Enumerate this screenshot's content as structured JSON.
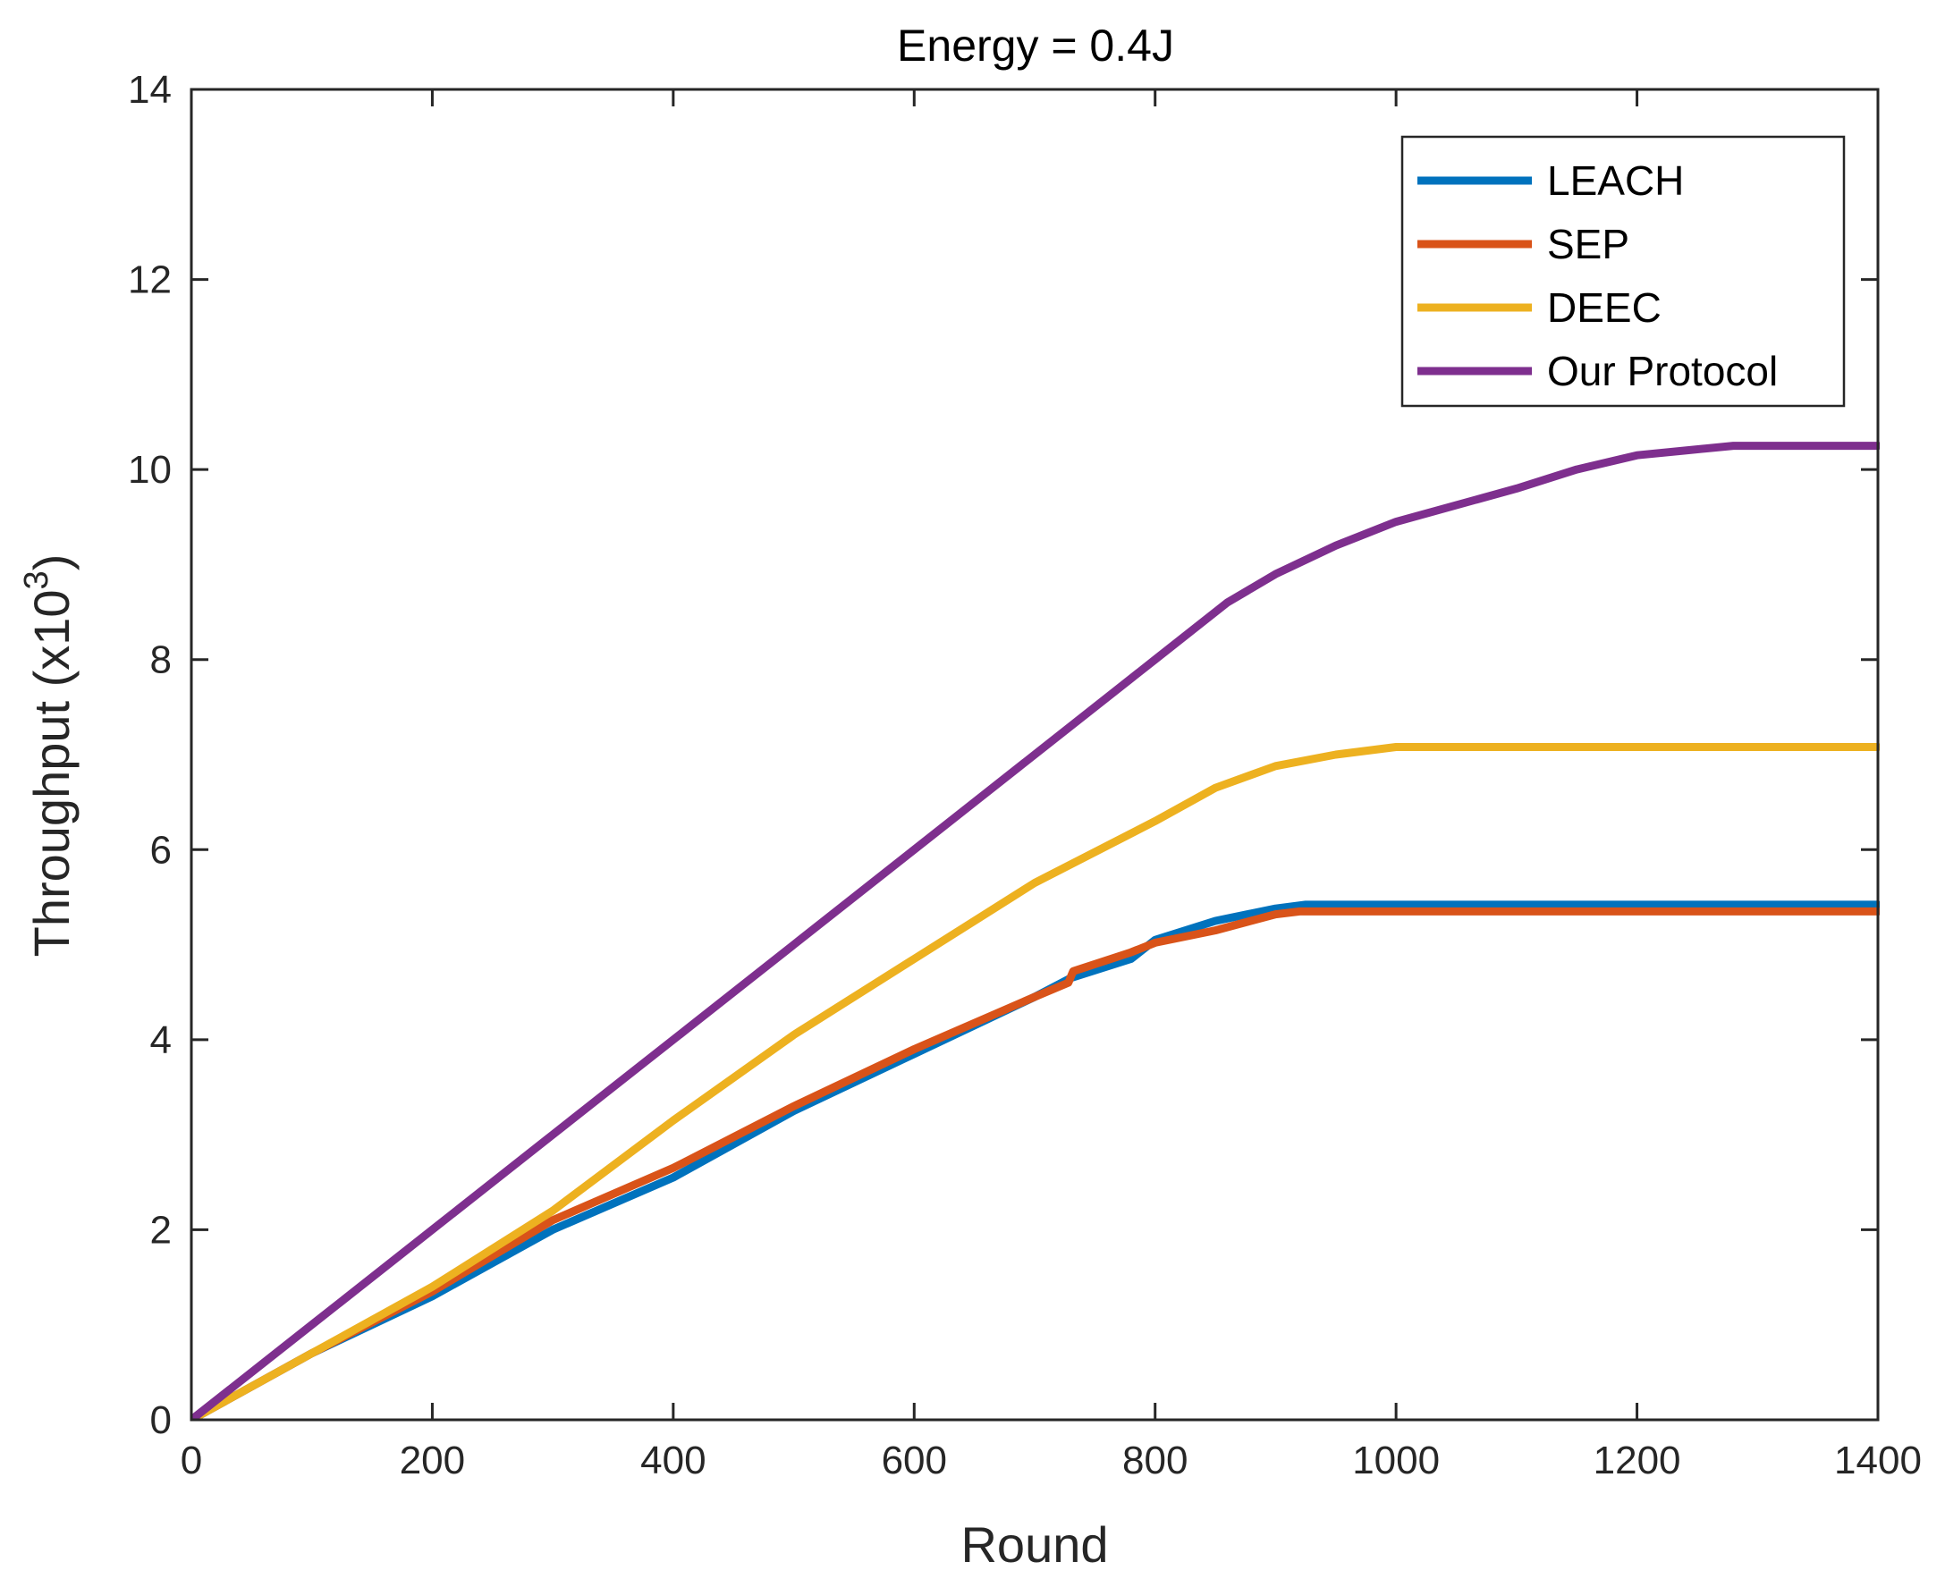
{
  "chart_data": {
    "type": "line",
    "title": "Energy = 0.4J",
    "xlabel": "Round",
    "ylabel_main": "Throughput (x10",
    "ylabel_sup": "3",
    "ylabel_close": ")",
    "xlim": [
      0,
      1400
    ],
    "ylim": [
      0,
      14
    ],
    "xticks": [
      0,
      200,
      400,
      600,
      800,
      1000,
      1200,
      1400
    ],
    "yticks": [
      0,
      2,
      4,
      6,
      8,
      10,
      12,
      14
    ],
    "grid": false,
    "legend_position": "top-right",
    "series": [
      {
        "name": "LEACH",
        "color": "#0072BD",
        "x": [
          0,
          100,
          200,
          300,
          400,
          500,
          600,
          700,
          730,
          780,
          800,
          850,
          900,
          925,
          1000,
          1200,
          1400
        ],
        "y": [
          0,
          0.7,
          1.3,
          2.0,
          2.55,
          3.25,
          3.85,
          4.45,
          4.65,
          4.85,
          5.05,
          5.25,
          5.38,
          5.42,
          5.42,
          5.42,
          5.42
        ]
      },
      {
        "name": "SEP",
        "color": "#D95319",
        "x": [
          0,
          100,
          200,
          300,
          400,
          500,
          600,
          700,
          728,
          732,
          780,
          800,
          850,
          900,
          920,
          1000,
          1200,
          1400
        ],
        "y": [
          0,
          0.7,
          1.35,
          2.1,
          2.65,
          3.3,
          3.9,
          4.45,
          4.6,
          4.72,
          4.92,
          5.02,
          5.15,
          5.32,
          5.35,
          5.35,
          5.35,
          5.35
        ]
      },
      {
        "name": "DEEC",
        "color": "#EDB120",
        "x": [
          0,
          100,
          200,
          300,
          400,
          500,
          600,
          700,
          800,
          850,
          900,
          950,
          1000,
          1010,
          1200,
          1400
        ],
        "y": [
          0,
          0.7,
          1.4,
          2.2,
          3.15,
          4.05,
          4.85,
          5.65,
          6.3,
          6.65,
          6.88,
          7.0,
          7.08,
          7.08,
          7.08,
          7.08
        ]
      },
      {
        "name": "Our Protocol",
        "color": "#7E2F8E",
        "x": [
          0,
          100,
          200,
          300,
          400,
          500,
          600,
          700,
          800,
          860,
          900,
          950,
          1000,
          1100,
          1150,
          1200,
          1280,
          1400
        ],
        "y": [
          0,
          1.0,
          2.0,
          3.0,
          4.0,
          5.0,
          6.0,
          7.0,
          8.0,
          8.6,
          8.9,
          9.2,
          9.45,
          9.8,
          10.0,
          10.15,
          10.25,
          10.25
        ]
      }
    ]
  }
}
